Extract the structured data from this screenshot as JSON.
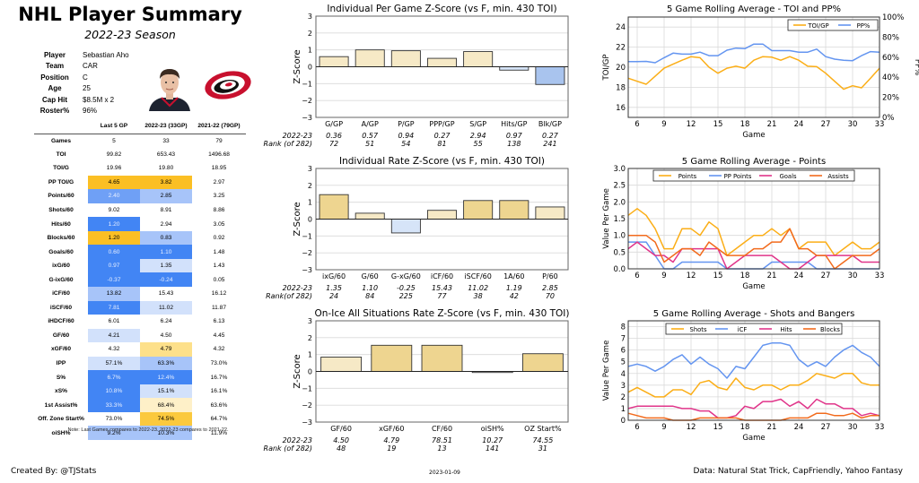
{
  "header": {
    "title": "NHL Player Summary",
    "subtitle": "2022-23 Season"
  },
  "player_info": [
    {
      "label": "Player",
      "value": "Sebastian Aho"
    },
    {
      "label": "Team",
      "value": "CAR"
    },
    {
      "label": "Position",
      "value": "C"
    },
    {
      "label": "Age",
      "value": "25"
    },
    {
      "label": "Cap Hit",
      "value": "$8.5M x 2"
    },
    {
      "label": "Roster%",
      "value": "96%"
    }
  ],
  "images": {
    "headshot": "player-headshot",
    "logo": "carolina-hurricanes-logo"
  },
  "colors": {
    "strong_orange": "#FBBF24",
    "medium_orange": "#FCD265",
    "light_orange": "#FDE6A8",
    "pale_orange": "#FEF0C8",
    "strong_blue": "#4285F4",
    "medium_blue": "#6FA0F6",
    "light_blue": "#A7C4F9",
    "pale_blue": "#D2E1FB",
    "bar_gold_strong": "#EED590",
    "bar_gold_light": "#F6E9C6",
    "bar_blue_light": "#D6E4F8",
    "bar_blue": "#A9C4EE"
  },
  "stats_table": {
    "columns": [
      "",
      "Last 5 GP",
      "2022-23 (33GP)",
      "2021-22 (79GP)"
    ],
    "rows": [
      {
        "label": "Games",
        "values": [
          "5",
          "33",
          "79"
        ],
        "shade": [
          "",
          "",
          ""
        ]
      },
      {
        "label": "TOI",
        "values": [
          "99.82",
          "653.43",
          "1496.68"
        ],
        "shade": [
          "",
          "",
          ""
        ]
      },
      {
        "label": "TOI/G",
        "values": [
          "19.96",
          "19.80",
          "18.95"
        ],
        "shade": [
          "",
          "",
          ""
        ]
      },
      {
        "label": "PP TOI/G",
        "values": [
          "4.65",
          "3.82",
          "2.97"
        ],
        "shade": [
          "#FBBF24",
          "#FBBF24",
          ""
        ]
      },
      {
        "label": "Points/60",
        "values": [
          "2.40",
          "2.85",
          "3.25"
        ],
        "shade": [
          "#6FA0F6",
          "#A7C4F9",
          ""
        ]
      },
      {
        "label": "Shots/60",
        "values": [
          "9.02",
          "8.91",
          "8.86"
        ],
        "shade": [
          "",
          "",
          ""
        ]
      },
      {
        "label": "Hits/60",
        "values": [
          "1.20",
          "2.94",
          "3.05"
        ],
        "shade": [
          "#4285F4",
          "",
          ""
        ]
      },
      {
        "label": "Blocks/60",
        "values": [
          "1.20",
          "0.83",
          "0.92"
        ],
        "shade": [
          "#FBBF24",
          "#A7C4F9",
          ""
        ]
      },
      {
        "label": "Goals/60",
        "values": [
          "0.60",
          "1.10",
          "1.48"
        ],
        "shade": [
          "#4285F4",
          "#4285F4",
          ""
        ]
      },
      {
        "label": "ixG/60",
        "values": [
          "0.97",
          "1.35",
          "1.43"
        ],
        "shade": [
          "#4285F4",
          "#D2E1FB",
          ""
        ]
      },
      {
        "label": "G-ixG/60",
        "values": [
          "-0.37",
          "-0.24",
          "0.05"
        ],
        "shade": [
          "#4285F4",
          "#4285F4",
          ""
        ]
      },
      {
        "label": "iCF/60",
        "values": [
          "13.82",
          "15.43",
          "16.12"
        ],
        "shade": [
          "#A7C4F9",
          "",
          ""
        ]
      },
      {
        "label": "iSCF/60",
        "values": [
          "7.81",
          "11.02",
          "11.87"
        ],
        "shade": [
          "#4285F4",
          "#D2E1FB",
          ""
        ]
      },
      {
        "label": "iHDCF/60",
        "values": [
          "6.01",
          "6.24",
          "6.13"
        ],
        "shade": [
          "",
          "",
          ""
        ]
      },
      {
        "label": "GF/60",
        "values": [
          "4.21",
          "4.50",
          "4.45"
        ],
        "shade": [
          "#D2E1FB",
          "",
          ""
        ]
      },
      {
        "label": "xGF/60",
        "values": [
          "4.32",
          "4.79",
          "4.32"
        ],
        "shade": [
          "",
          "#FDE08A",
          ""
        ]
      },
      {
        "label": "IPP",
        "values": [
          "57.1%",
          "63.3%",
          "73.0%"
        ],
        "shade": [
          "#D2E1FB",
          "#A7C4F9",
          ""
        ]
      },
      {
        "label": "S%",
        "values": [
          "6.7%",
          "12.4%",
          "16.7%"
        ],
        "shade": [
          "#4285F4",
          "#4285F4",
          ""
        ]
      },
      {
        "label": "xS%",
        "values": [
          "10.8%",
          "15.1%",
          "16.1%"
        ],
        "shade": [
          "#4285F4",
          "#D2E1FB",
          ""
        ]
      },
      {
        "label": "1st Assist%",
        "values": [
          "33.3%",
          "68.4%",
          "63.6%"
        ],
        "shade": [
          "#4285F4",
          "#FEF0C8",
          ""
        ]
      },
      {
        "label": "Off. Zone Start%",
        "values": [
          "73.0%",
          "74.5%",
          "64.7%"
        ],
        "shade": [
          "",
          "#FBC93D",
          ""
        ]
      },
      {
        "label": "oiSH%",
        "values": [
          "9.2%",
          "10.3%",
          "11.9%"
        ],
        "shade": [
          "#A7C4F9",
          "#A7C4F9",
          ""
        ]
      }
    ],
    "white_text_shades": [
      "#4285F4",
      "#6FA0F6"
    ],
    "note": "Note: Last Games compares to 2022-23. 2022-23 compares to 2021-22."
  },
  "chart_data": [
    {
      "id": "per-game",
      "type": "bar",
      "title": "Individual Per Game Z-Score (vs F, min. 430 TOI)",
      "ylabel": "Z-Score",
      "ylim": [
        -3,
        3
      ],
      "yticks": [
        -3,
        -2,
        -1,
        0,
        1,
        2,
        3
      ],
      "categories": [
        "G/GP",
        "A/GP",
        "P/GP",
        "PPP/GP",
        "S/GP",
        "Hits/GP",
        "Blk/GP"
      ],
      "values": [
        0.6,
        1.0,
        0.95,
        0.5,
        0.9,
        -0.2,
        -1.05
      ],
      "bar_colors": [
        "#F6E9C6",
        "#F6E9C6",
        "#F6E9C6",
        "#F6E9C6",
        "#F6E9C6",
        "#D6E4F8",
        "#A9C4EE"
      ],
      "row_labels": [
        "2022-23",
        "Rank (of 282)"
      ],
      "season_values": [
        "0.36",
        "0.57",
        "0.94",
        "0.27",
        "2.94",
        "0.97",
        "0.27"
      ],
      "ranks": [
        "72",
        "51",
        "54",
        "81",
        "55",
        "138",
        "241"
      ],
      "grid": true
    },
    {
      "id": "rate",
      "type": "bar",
      "title": "Individual Rate Z-Score (vs F, min. 430 TOI)",
      "ylabel": "Z-Score",
      "ylim": [
        -3,
        3
      ],
      "yticks": [
        -3,
        -2,
        -1,
        0,
        1,
        2,
        3
      ],
      "categories": [
        "ixG/60",
        "G/60",
        "G-xG/60",
        "iCF/60",
        "iSCF/60",
        "1A/60",
        "P/60"
      ],
      "values": [
        1.45,
        0.35,
        -0.82,
        0.52,
        1.1,
        1.1,
        0.72
      ],
      "bar_colors": [
        "#EED590",
        "#F6E9C6",
        "#D6E4F8",
        "#F6E9C6",
        "#EED590",
        "#EED590",
        "#F6E9C6"
      ],
      "row_labels": [
        "2022-23",
        "Rank(of 282)"
      ],
      "season_values": [
        "1.35",
        "1.10",
        "-0.25",
        "15.43",
        "11.02",
        "1.19",
        "2.85"
      ],
      "ranks": [
        "24",
        "84",
        "225",
        "77",
        "38",
        "42",
        "70"
      ],
      "grid": true
    },
    {
      "id": "on-ice",
      "type": "bar",
      "title": "On-Ice All Situations Rate Z-Score (vs F, min. 430 TOI)",
      "ylabel": "Z-Score",
      "ylim": [
        -3,
        3
      ],
      "yticks": [
        -3,
        -2,
        -1,
        0,
        1,
        2,
        3
      ],
      "categories": [
        "GF/60",
        "xGF/60",
        "CF/60",
        "oiSH%",
        "OZ Start%"
      ],
      "values": [
        0.85,
        1.55,
        1.55,
        -0.05,
        1.05
      ],
      "bar_colors": [
        "#F6E9C6",
        "#EED590",
        "#EED590",
        "#ffffff",
        "#EED590"
      ],
      "row_labels": [
        "2022-23",
        "Rank (of 282)"
      ],
      "season_values": [
        "4.50",
        "4.79",
        "78.51",
        "10.27",
        "74.55"
      ],
      "ranks": [
        "48",
        "19",
        "13",
        "141",
        "31"
      ],
      "grid": true
    },
    {
      "id": "toi-pp",
      "type": "line",
      "title": "5 Game Rolling Average - TOI and PP%",
      "xlabel": "Game",
      "ylabel": "TOI/GP",
      "ylabel_right": "PP%",
      "xlim": [
        5,
        33
      ],
      "xticks": [
        6,
        9,
        12,
        15,
        18,
        21,
        24,
        27,
        30,
        33
      ],
      "ylim": [
        15,
        25
      ],
      "yticks": [
        16,
        18,
        20,
        22,
        24
      ],
      "ylim_right": [
        0,
        100
      ],
      "yticks_right": [
        "0%",
        "20%",
        "40%",
        "60%",
        "80%",
        "100%"
      ],
      "legend": "top-right",
      "x": [
        5,
        6,
        7,
        8,
        9,
        10,
        11,
        12,
        13,
        14,
        15,
        16,
        17,
        18,
        19,
        20,
        21,
        22,
        23,
        24,
        25,
        26,
        27,
        28,
        29,
        30,
        31,
        32,
        33
      ],
      "series": [
        {
          "name": "TOI/GP",
          "axis": "left",
          "color": "#FBAE17",
          "values": [
            18.9,
            18.6,
            18.3,
            19.1,
            19.9,
            20.3,
            20.7,
            21.05,
            20.95,
            20.0,
            19.4,
            19.9,
            20.1,
            19.9,
            20.7,
            21.05,
            21.0,
            20.7,
            21.05,
            20.7,
            20.1,
            20.05,
            19.4,
            18.6,
            17.8,
            18.15,
            17.95,
            18.9,
            19.9
          ]
        },
        {
          "name": "PP%",
          "axis": "right",
          "color": "#6495F0",
          "values": [
            55.5,
            55.5,
            55.8,
            54.5,
            59.5,
            64,
            63,
            63,
            65,
            61.5,
            61.5,
            67,
            69,
            68.5,
            73,
            73,
            66.5,
            66.5,
            66.5,
            65,
            65,
            68,
            60.5,
            58,
            57,
            56.5,
            61.5,
            65.5,
            65
          ]
        }
      ],
      "grid": true
    },
    {
      "id": "points",
      "type": "line",
      "title": "5 Game Rolling Average - Points",
      "xlabel": "Game",
      "ylabel": "Value Per Game",
      "xlim": [
        5,
        33
      ],
      "xticks": [
        6,
        9,
        12,
        15,
        18,
        21,
        24,
        27,
        30,
        33
      ],
      "ylim": [
        0,
        3
      ],
      "yticks": [
        "0.0",
        "0.5",
        "1.0",
        "1.5",
        "2.0",
        "2.5",
        "3.0"
      ],
      "legend": "top-center",
      "x": [
        5,
        6,
        7,
        8,
        9,
        10,
        11,
        12,
        13,
        14,
        15,
        16,
        17,
        18,
        19,
        20,
        21,
        22,
        23,
        24,
        25,
        26,
        27,
        28,
        29,
        30,
        31,
        32,
        33
      ],
      "series": [
        {
          "name": "Points",
          "color": "#FBAE17",
          "values": [
            1.6,
            1.8,
            1.6,
            1.2,
            0.6,
            0.6,
            1.2,
            1.2,
            1.0,
            1.4,
            1.2,
            0.4,
            0.6,
            0.8,
            1.0,
            1.0,
            1.2,
            1.0,
            1.2,
            0.6,
            0.8,
            0.8,
            0.8,
            0.4,
            0.6,
            0.8,
            0.6,
            0.6,
            0.8
          ]
        },
        {
          "name": "PP Points",
          "color": "#6495F0",
          "values": [
            0.8,
            0.8,
            0.8,
            0.4,
            0.0,
            0.0,
            0.2,
            0.2,
            0.2,
            0.2,
            0.2,
            0.0,
            0.0,
            0.0,
            0.0,
            0.0,
            0.2,
            0.2,
            0.2,
            0.2,
            0.2,
            0.0,
            0.0,
            0.0,
            0.0,
            0.0,
            0.0,
            0.0,
            0.0
          ]
        },
        {
          "name": "Goals",
          "color": "#E0358A",
          "values": [
            0.6,
            0.8,
            0.6,
            0.4,
            0.4,
            0.2,
            0.6,
            0.6,
            0.6,
            0.6,
            0.6,
            0.0,
            0.2,
            0.4,
            0.4,
            0.4,
            0.4,
            0.2,
            0.0,
            0.0,
            0.2,
            0.4,
            0.4,
            0.4,
            0.4,
            0.4,
            0.2,
            0.2,
            0.2
          ]
        },
        {
          "name": "Assists",
          "color": "#F26B1D",
          "values": [
            1.0,
            1.0,
            1.0,
            0.8,
            0.2,
            0.4,
            0.6,
            0.6,
            0.4,
            0.8,
            0.6,
            0.4,
            0.4,
            0.4,
            0.6,
            0.6,
            0.8,
            0.8,
            1.2,
            0.6,
            0.6,
            0.4,
            0.4,
            0.0,
            0.2,
            0.4,
            0.4,
            0.4,
            0.6
          ]
        }
      ],
      "grid": true
    },
    {
      "id": "shots-bangers",
      "type": "line",
      "title": "5 Game Rolling Average - Shots and Bangers",
      "xlabel": "Game",
      "ylabel": "Value Per Game",
      "xlim": [
        5,
        33
      ],
      "xticks": [
        6,
        9,
        12,
        15,
        18,
        21,
        24,
        27,
        30,
        33
      ],
      "ylim": [
        0,
        8.5
      ],
      "yticks": [
        "0",
        "1",
        "2",
        "3",
        "4",
        "5",
        "6",
        "7",
        "8"
      ],
      "legend": "top-center",
      "x": [
        5,
        6,
        7,
        8,
        9,
        10,
        11,
        12,
        13,
        14,
        15,
        16,
        17,
        18,
        19,
        20,
        21,
        22,
        23,
        24,
        25,
        26,
        27,
        28,
        29,
        30,
        31,
        32,
        33
      ],
      "series": [
        {
          "name": "Shots",
          "color": "#FBAE17",
          "values": [
            2.4,
            2.8,
            2.4,
            2.0,
            2.0,
            2.6,
            2.6,
            2.2,
            3.2,
            3.4,
            2.8,
            2.6,
            3.6,
            2.8,
            2.6,
            3.0,
            3.0,
            2.6,
            3.0,
            3.0,
            3.4,
            4.0,
            3.8,
            3.6,
            4.0,
            4.0,
            3.2,
            3.0,
            3.0
          ]
        },
        {
          "name": "iCF",
          "color": "#6495F0",
          "values": [
            4.6,
            4.8,
            4.6,
            4.2,
            4.6,
            5.2,
            5.6,
            4.8,
            5.4,
            4.8,
            4.4,
            3.6,
            4.6,
            4.4,
            5.4,
            6.4,
            6.6,
            6.6,
            6.4,
            5.2,
            4.6,
            5.0,
            4.6,
            5.4,
            6.0,
            6.4,
            5.8,
            5.4,
            4.6
          ]
        },
        {
          "name": "Hits",
          "color": "#E0358A",
          "values": [
            1.0,
            1.2,
            1.2,
            1.2,
            1.2,
            1.2,
            1.0,
            1.0,
            0.8,
            0.8,
            0.2,
            0.2,
            0.4,
            1.2,
            1.0,
            1.6,
            1.6,
            1.8,
            1.2,
            1.6,
            1.0,
            1.8,
            1.4,
            1.4,
            1.0,
            1.0,
            0.4,
            0.6,
            0.4
          ]
        },
        {
          "name": "Blocks",
          "color": "#F26B1D",
          "values": [
            0.6,
            0.4,
            0.2,
            0.2,
            0.2,
            0.0,
            0.0,
            0.0,
            0.2,
            0.2,
            0.2,
            0.2,
            0.2,
            0.0,
            0.0,
            0.0,
            0.0,
            0.0,
            0.2,
            0.2,
            0.2,
            0.6,
            0.6,
            0.4,
            0.4,
            0.6,
            0.2,
            0.4,
            0.4
          ]
        }
      ],
      "grid": true
    }
  ],
  "footer": {
    "created_by": "Created By: @TJStats",
    "date": "2023-01-09",
    "source": "Data: Natural Stat Trick, CapFriendly, Yahoo Fantasy"
  }
}
